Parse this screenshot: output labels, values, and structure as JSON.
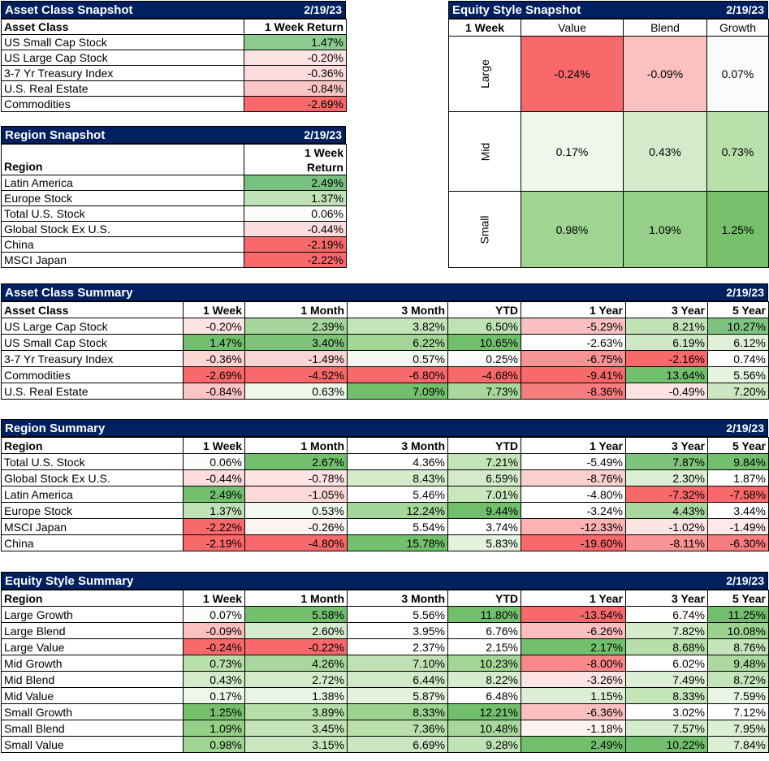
{
  "colors": {
    "header_bg": "#002060",
    "red_strong": "#f8696b",
    "green_strong": "#63be7b"
  },
  "asset_snapshot": {
    "title": "Asset Class Snapshot",
    "date": "2/19/23",
    "col_label": "Asset Class",
    "col_value": "1 Week Return",
    "rows": [
      {
        "name": "US Small Cap Stock",
        "value": "1.47%",
        "bg": "#8ccc8f"
      },
      {
        "name": "US Large Cap Stock",
        "value": "-0.20%",
        "bg": "#fde4e4"
      },
      {
        "name": "3-7 Yr Treasury Index",
        "value": "-0.36%",
        "bg": "#fcdcdc"
      },
      {
        "name": "U.S. Real Estate",
        "value": "-0.84%",
        "bg": "#fbc4c5"
      },
      {
        "name": "Commodities",
        "value": "-2.69%",
        "bg": "#f8696b"
      }
    ]
  },
  "region_snapshot": {
    "title": "Region Snapshot",
    "date": "2/19/23",
    "col_label": "Region",
    "col_value_line1": "1 Week",
    "col_value_line2": "Return",
    "rows": [
      {
        "name": "Latin America",
        "value": "2.49%",
        "bg": "#78c17f"
      },
      {
        "name": "Europe Stock",
        "value": "1.37%",
        "bg": "#c0e2b7"
      },
      {
        "name": "Total U.S. Stock",
        "value": "0.06%",
        "bg": "#fbfdfa"
      },
      {
        "name": "Global Stock Ex U.S.",
        "value": "-0.44%",
        "bg": "#fcdcdc"
      },
      {
        "name": "China",
        "value": "-2.19%",
        "bg": "#f8696b"
      },
      {
        "name": "MSCI Japan",
        "value": "-2.22%",
        "bg": "#f8696b"
      }
    ]
  },
  "equity_snapshot": {
    "title": "Equity Style Snapshot",
    "date": "2/19/23",
    "corner": "1 Week",
    "columns": [
      "Value",
      "Blend",
      "Growth"
    ],
    "rows": [
      {
        "label": "Large",
        "cells": [
          {
            "value": "-0.24%",
            "bg": "#f8696b"
          },
          {
            "value": "-0.09%",
            "bg": "#fcc0c1"
          },
          {
            "value": "0.07%",
            "bg": "#f9fcf8"
          }
        ]
      },
      {
        "label": "Mid",
        "cells": [
          {
            "value": "0.17%",
            "bg": "#eef7ea"
          },
          {
            "value": "0.43%",
            "bg": "#d3ebca"
          },
          {
            "value": "0.73%",
            "bg": "#b9dfab"
          }
        ]
      },
      {
        "label": "Small",
        "cells": [
          {
            "value": "0.98%",
            "bg": "#a0d493"
          },
          {
            "value": "1.09%",
            "bg": "#95cf88"
          },
          {
            "value": "1.25%",
            "bg": "#76c06c"
          }
        ]
      }
    ]
  },
  "asset_summary": {
    "title": "Asset Class Summary",
    "date": "2/19/23",
    "columns": [
      "Asset Class",
      "1 Week",
      "1 Month",
      "3 Month",
      "YTD",
      "1 Year",
      "3 Year",
      "5 Year"
    ],
    "rows": [
      {
        "name": "US Large Cap Stock",
        "cells": [
          [
            "-0.20%",
            "#fde4e4"
          ],
          [
            "2.39%",
            "#a6d69b"
          ],
          [
            "3.82%",
            "#c3e3b8"
          ],
          [
            "6.50%",
            "#bfe1b3"
          ],
          [
            "-5.29%",
            "#fac0c1"
          ],
          [
            "8.21%",
            "#c1e2b6"
          ],
          [
            "10.27%",
            "#7ec480"
          ]
        ]
      },
      {
        "name": "US Small Cap Stock",
        "cells": [
          [
            "1.47%",
            "#72bf6e"
          ],
          [
            "3.40%",
            "#7fc47a"
          ],
          [
            "6.22%",
            "#a3d596"
          ],
          [
            "10.65%",
            "#72bf6e"
          ],
          [
            "-2.63%",
            "#ffffff"
          ],
          [
            "6.19%",
            "#cfe8c5"
          ],
          [
            "6.12%",
            "#e0f0d8"
          ]
        ]
      },
      {
        "name": "3-7 Yr Treasury Index",
        "cells": [
          [
            "-0.36%",
            "#fdd6d6"
          ],
          [
            "-1.49%",
            "#fbd5d5"
          ],
          [
            "0.57%",
            "#f3f9f0"
          ],
          [
            "0.25%",
            "#fbfdfa"
          ],
          [
            "-6.75%",
            "#f99394"
          ],
          [
            "-2.16%",
            "#f8696b"
          ],
          [
            "0.74%",
            "#ffffff"
          ]
        ]
      },
      {
        "name": "Commodities",
        "cells": [
          [
            "-2.69%",
            "#f8696b"
          ],
          [
            "-4.52%",
            "#f8696b"
          ],
          [
            "-6.80%",
            "#f8696b"
          ],
          [
            "-4.68%",
            "#f8696b"
          ],
          [
            "-9.41%",
            "#f8696b"
          ],
          [
            "13.64%",
            "#72bf6e"
          ],
          [
            "5.56%",
            "#e7f3e1"
          ]
        ]
      },
      {
        "name": "U.S. Real Estate",
        "cells": [
          [
            "-0.84%",
            "#fbc4c5"
          ],
          [
            "0.63%",
            "#eef7ea"
          ],
          [
            "7.09%",
            "#72bf6e"
          ],
          [
            "7.73%",
            "#a9d89e"
          ],
          [
            "-8.36%",
            "#f87d7f"
          ],
          [
            "-0.49%",
            "#fde4e4"
          ],
          [
            "7.20%",
            "#cde7c2"
          ]
        ]
      }
    ]
  },
  "region_summary": {
    "title": "Region Summary",
    "date": "2/19/23",
    "columns": [
      "Region",
      "1 Week",
      "1 Month",
      "3 Month",
      "YTD",
      "1 Year",
      "3 Year",
      "5 Year"
    ],
    "rows": [
      {
        "name": "Total U.S. Stock",
        "cells": [
          [
            "0.06%",
            "#fbfdfa"
          ],
          [
            "2.67%",
            "#72bf6e"
          ],
          [
            "4.36%",
            "#ffffff"
          ],
          [
            "7.21%",
            "#c3e3b8"
          ],
          [
            "-5.49%",
            "#ffffff"
          ],
          [
            "7.87%",
            "#7dc379"
          ],
          [
            "9.84%",
            "#72bf6e"
          ]
        ]
      },
      {
        "name": "Global Stock Ex U.S.",
        "cells": [
          [
            "-0.44%",
            "#fcdcdc"
          ],
          [
            "-0.78%",
            "#fde4e4"
          ],
          [
            "8.43%",
            "#d5ecca"
          ],
          [
            "6.59%",
            "#d3ebca"
          ],
          [
            "-8.76%",
            "#fbd0d1"
          ],
          [
            "2.30%",
            "#dcefd4"
          ],
          [
            "1.87%",
            "#ffffff"
          ]
        ]
      },
      {
        "name": "Latin America",
        "cells": [
          [
            "2.49%",
            "#72bf6e"
          ],
          [
            "-1.05%",
            "#fcd8d8"
          ],
          [
            "5.46%",
            "#ffffff"
          ],
          [
            "7.01%",
            "#c9e6bf"
          ],
          [
            "-4.80%",
            "#ffffff"
          ],
          [
            "-7.32%",
            "#f8696b"
          ],
          [
            "-7.58%",
            "#f8696b"
          ]
        ]
      },
      {
        "name": "Europe Stock",
        "cells": [
          [
            "1.37%",
            "#c0e2b7"
          ],
          [
            "0.53%",
            "#f3f9f0"
          ],
          [
            "12.24%",
            "#a5d69a"
          ],
          [
            "9.44%",
            "#72bf6e"
          ],
          [
            "-3.24%",
            "#ffffff"
          ],
          [
            "4.43%",
            "#a9d89e"
          ],
          [
            "3.44%",
            "#ffffff"
          ]
        ]
      },
      {
        "name": "MSCI Japan",
        "cells": [
          [
            "-2.22%",
            "#f8696b"
          ],
          [
            "-0.26%",
            "#fef2f2"
          ],
          [
            "5.54%",
            "#ffffff"
          ],
          [
            "3.74%",
            "#ffffff"
          ],
          [
            "-12.33%",
            "#fbb3b4"
          ],
          [
            "-1.02%",
            "#fde4e4"
          ],
          [
            "-1.49%",
            "#fee8e8"
          ]
        ]
      },
      {
        "name": "China",
        "cells": [
          [
            "-2.19%",
            "#f8696b"
          ],
          [
            "-4.80%",
            "#f8696b"
          ],
          [
            "15.78%",
            "#72bf6e"
          ],
          [
            "5.83%",
            "#e4f2dd"
          ],
          [
            "-19.60%",
            "#f8696b"
          ],
          [
            "-8.11%",
            "#f99394"
          ],
          [
            "-6.30%",
            "#f87d7f"
          ]
        ]
      }
    ]
  },
  "equity_summary": {
    "title": "Equity Style Summary",
    "date": "2/19/23",
    "columns": [
      "Region",
      "1 Week",
      "1 Month",
      "3 Month",
      "YTD",
      "1 Year",
      "3 Year",
      "5 Year"
    ],
    "rows": [
      {
        "name": "Large Growth",
        "cells": [
          [
            "0.07%",
            "#f9fcf8"
          ],
          [
            "5.58%",
            "#72bf6e"
          ],
          [
            "5.56%",
            "#ffffff"
          ],
          [
            "11.80%",
            "#72bf6e"
          ],
          [
            "-13.54%",
            "#f8696b"
          ],
          [
            "6.74%",
            "#ffffff"
          ],
          [
            "11.25%",
            "#72bf6e"
          ]
        ]
      },
      {
        "name": "Large Blend",
        "cells": [
          [
            "-0.09%",
            "#fcc0c1"
          ],
          [
            "2.60%",
            "#d6ecce"
          ],
          [
            "3.95%",
            "#ffffff"
          ],
          [
            "6.76%",
            "#ffffff"
          ],
          [
            "-6.26%",
            "#fbbfc0"
          ],
          [
            "7.82%",
            "#d5ecca"
          ],
          [
            "10.08%",
            "#9bd28f"
          ]
        ]
      },
      {
        "name": "Large Value",
        "cells": [
          [
            "-0.24%",
            "#f8696b"
          ],
          [
            "-0.22%",
            "#f8696b"
          ],
          [
            "2.37%",
            "#ffffff"
          ],
          [
            "2.15%",
            "#ffffff"
          ],
          [
            "2.17%",
            "#72bf6e"
          ],
          [
            "8.68%",
            "#b5dea9"
          ],
          [
            "8.76%",
            "#c4e4b9"
          ]
        ]
      },
      {
        "name": "Mid Growth",
        "cells": [
          [
            "0.73%",
            "#b9dfab"
          ],
          [
            "4.26%",
            "#a8d79d"
          ],
          [
            "7.10%",
            "#bfe1b3"
          ],
          [
            "10.23%",
            "#a3d596"
          ],
          [
            "-8.00%",
            "#f98889"
          ],
          [
            "6.02%",
            "#ffffff"
          ],
          [
            "9.48%",
            "#add9a1"
          ]
        ]
      },
      {
        "name": "Mid Blend",
        "cells": [
          [
            "0.43%",
            "#d3ebca"
          ],
          [
            "2.72%",
            "#d4ebca"
          ],
          [
            "6.44%",
            "#d0e9c6"
          ],
          [
            "8.22%",
            "#d6ecce"
          ],
          [
            "-3.26%",
            "#fde4e4"
          ],
          [
            "7.49%",
            "#dcefd4"
          ],
          [
            "8.72%",
            "#c4e4b9"
          ]
        ]
      },
      {
        "name": "Mid Value",
        "cells": [
          [
            "0.17%",
            "#eef7ea"
          ],
          [
            "1.38%",
            "#e9f5e4"
          ],
          [
            "5.87%",
            "#e4f2dd"
          ],
          [
            "6.48%",
            "#ffffff"
          ],
          [
            "1.15%",
            "#dcefd4"
          ],
          [
            "8.33%",
            "#c4e4b9"
          ],
          [
            "7.59%",
            "#e9f5e4"
          ]
        ]
      },
      {
        "name": "Small Growth",
        "cells": [
          [
            "1.25%",
            "#76c06c"
          ],
          [
            "3.89%",
            "#b5dea9"
          ],
          [
            "8.33%",
            "#9bd28f"
          ],
          [
            "12.21%",
            "#72bf6e"
          ],
          [
            "-6.36%",
            "#fbbfc0"
          ],
          [
            "3.02%",
            "#ffffff"
          ],
          [
            "7.12%",
            "#ffffff"
          ]
        ]
      },
      {
        "name": "Small Blend",
        "cells": [
          [
            "1.09%",
            "#95cf88"
          ],
          [
            "3.45%",
            "#c4e4b9"
          ],
          [
            "7.36%",
            "#b9dfab"
          ],
          [
            "10.48%",
            "#a8d79d"
          ],
          [
            "-1.18%",
            "#fef2f2"
          ],
          [
            "7.57%",
            "#d6ecce"
          ],
          [
            "7.95%",
            "#dcefd4"
          ]
        ]
      },
      {
        "name": "Small Value",
        "cells": [
          [
            "0.98%",
            "#a0d493"
          ],
          [
            "3.15%",
            "#c9e6bf"
          ],
          [
            "6.69%",
            "#cbe7c1"
          ],
          [
            "9.28%",
            "#c0e2b7"
          ],
          [
            "2.49%",
            "#72bf6e"
          ],
          [
            "10.22%",
            "#72bf6e"
          ],
          [
            "7.84%",
            "#dcefd4"
          ]
        ]
      }
    ]
  }
}
